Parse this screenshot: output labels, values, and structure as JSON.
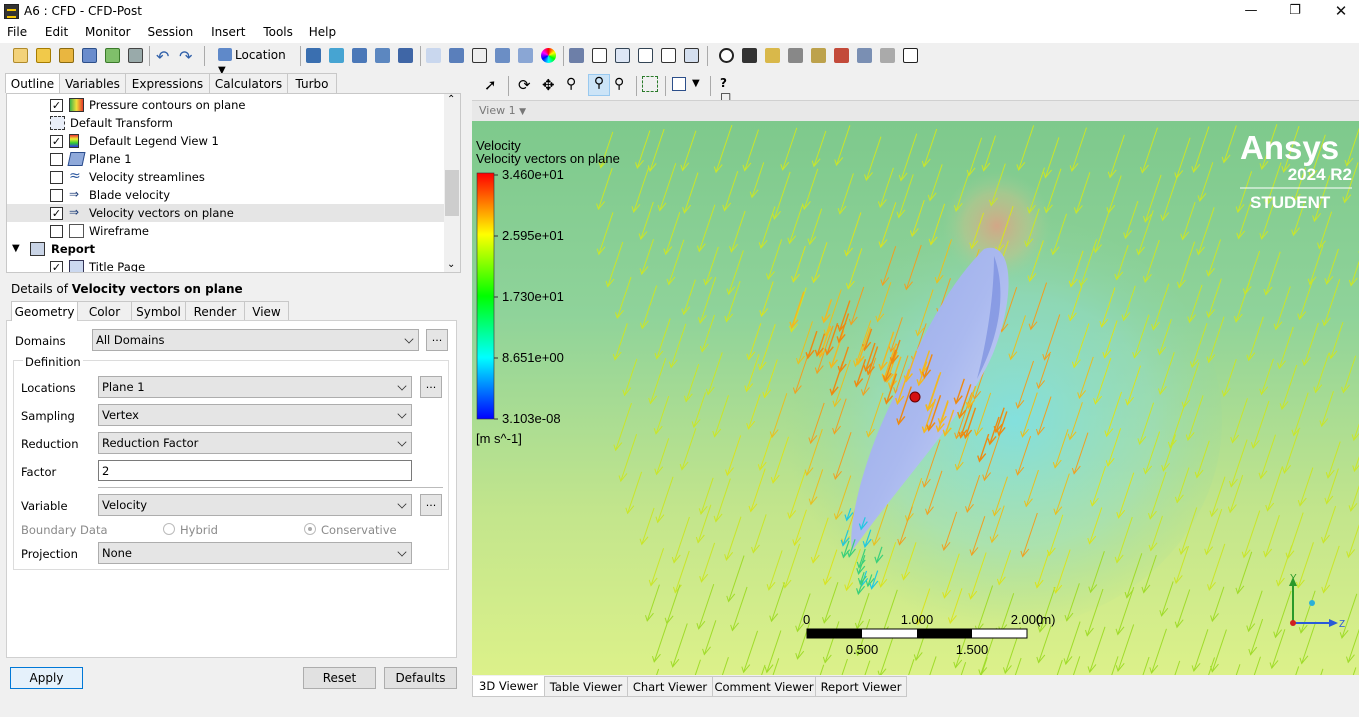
{
  "window": {
    "title": "A6 : CFD - CFD-Post"
  },
  "menu": [
    "File",
    "Edit",
    "Monitor",
    "Session",
    "Insert",
    "Tools",
    "Help"
  ],
  "toolbar": {
    "location_label": "Location"
  },
  "outline_tabs": [
    "Outline",
    "Variables",
    "Expressions",
    "Calculators",
    "Turbo"
  ],
  "tree": [
    {
      "label": "Pressure contours on plane",
      "checked": true,
      "icon": "contour-icon"
    },
    {
      "label": "Default Transform",
      "checked": null,
      "icon": "transform-icon"
    },
    {
      "label": "Default Legend View 1",
      "checked": true,
      "icon": "legend-icon"
    },
    {
      "label": "Plane 1",
      "checked": false,
      "icon": "plane-icon"
    },
    {
      "label": "Velocity streamlines",
      "checked": false,
      "icon": "streamline-icon"
    },
    {
      "label": "Blade velocity",
      "checked": false,
      "icon": "vector-icon"
    },
    {
      "label": "Velocity vectors on plane",
      "checked": true,
      "icon": "vector-icon"
    },
    {
      "label": "Wireframe",
      "checked": false,
      "icon": "wireframe-icon"
    },
    {
      "label": "Report",
      "checked": null,
      "icon": "report-icon"
    },
    {
      "label": "Title Page",
      "checked": true,
      "icon": "titlepage-icon"
    }
  ],
  "details": {
    "title_prefix": "Details of ",
    "title_object": "Velocity vectors on plane",
    "tabs": [
      "Geometry",
      "Color",
      "Symbol",
      "Render",
      "View"
    ],
    "domains_label": "Domains",
    "domains_value": "All Domains",
    "definition_label": "Definition",
    "locations_label": "Locations",
    "locations_value": "Plane 1",
    "sampling_label": "Sampling",
    "sampling_value": "Vertex",
    "reduction_label": "Reduction",
    "reduction_value": "Reduction Factor",
    "factor_label": "Factor",
    "factor_value": "2",
    "variable_label": "Variable",
    "variable_value": "Velocity",
    "boundary_label": "Boundary Data",
    "hybrid_label": "Hybrid",
    "conservative_label": "Conservative",
    "projection_label": "Projection",
    "projection_value": "None",
    "dots": "..."
  },
  "buttons": {
    "apply": "Apply",
    "reset": "Reset",
    "defaults": "Defaults"
  },
  "viewer": {
    "view_name": "View 1",
    "legend_title": "Velocity",
    "legend_subtitle": "Velocity vectors on plane",
    "legend_values": [
      "3.460e+01",
      "2.595e+01",
      "1.730e+01",
      "8.651e+00",
      "3.103e-08"
    ],
    "legend_units": "[m s^-1]",
    "brand": "Ansys",
    "version": "2024 R2",
    "edition": "STUDENT",
    "scale_top": [
      "0",
      "1.000",
      "2.000"
    ],
    "scale_unit": "(m)",
    "scale_bottom": [
      "0.500",
      "1.500"
    ],
    "axis_y": "Y",
    "axis_z": "Z"
  },
  "bottom_tabs": [
    "3D Viewer",
    "Table Viewer",
    "Chart Viewer",
    "Comment Viewer",
    "Report Viewer"
  ]
}
